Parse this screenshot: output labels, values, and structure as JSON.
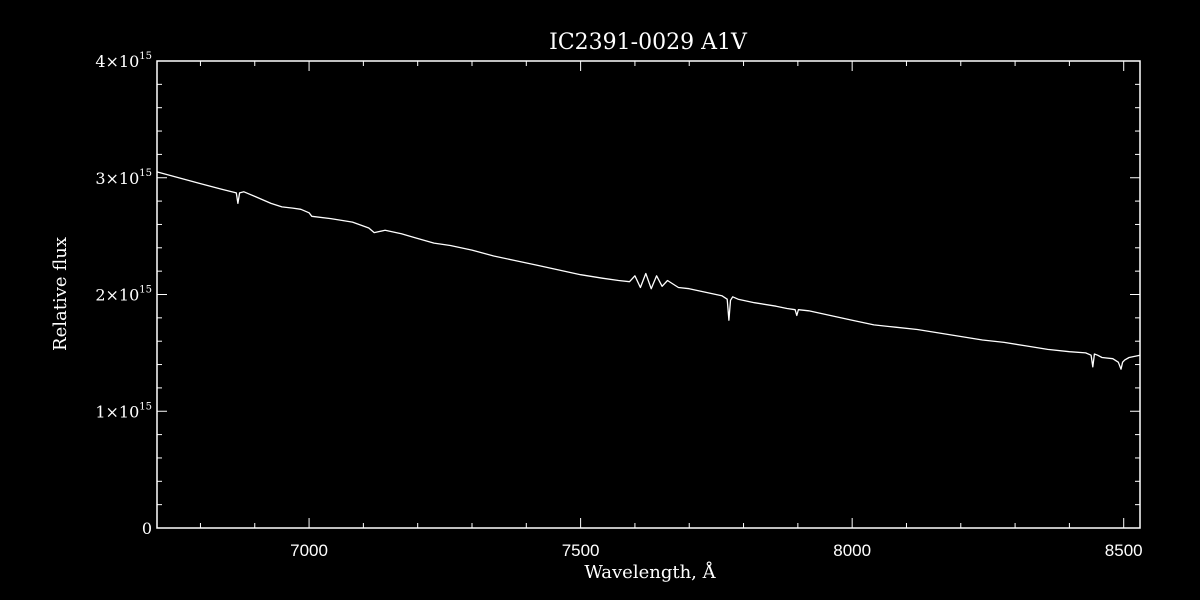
{
  "chart_data": {
    "type": "line",
    "title": "IC2391-0029  A1V",
    "xlabel": "Wavelength, Å",
    "ylabel": "Relative flux",
    "xlim": [
      6720,
      8530
    ],
    "ylim": [
      0,
      4000000000000000.0
    ],
    "xticks": [
      7000,
      7500,
      8000,
      8500
    ],
    "xtick_labels": [
      "7000",
      "7500",
      "8000",
      "8500"
    ],
    "xminor_step": 100,
    "yticks": [
      0,
      1000000000000000.0,
      2000000000000000.0,
      3000000000000000.0,
      4000000000000000.0
    ],
    "ytick_labels": [
      {
        "mantissa": "0",
        "exponent": ""
      },
      {
        "mantissa": "1×10",
        "exponent": "15"
      },
      {
        "mantissa": "2×10",
        "exponent": "15"
      },
      {
        "mantissa": "3×10",
        "exponent": "15"
      },
      {
        "mantissa": "4×10",
        "exponent": "15"
      }
    ],
    "yminor_step": 200000000000000.0,
    "grid": false,
    "series": [
      {
        "color": "#ffffff",
        "x": [
          6720,
          6760,
          6800,
          6840,
          6866,
          6869,
          6872,
          6880,
          6900,
          6930,
          6950,
          6970,
          6985,
          7000,
          7005,
          7040,
          7080,
          7110,
          7120,
          7140,
          7170,
          7185,
          7200,
          7230,
          7260,
          7300,
          7340,
          7380,
          7420,
          7460,
          7500,
          7540,
          7570,
          7590,
          7600,
          7610,
          7620,
          7630,
          7640,
          7650,
          7660,
          7680,
          7700,
          7730,
          7760,
          7770,
          7773,
          7776,
          7780,
          7790,
          7820,
          7860,
          7880,
          7895,
          7898,
          7901,
          7920,
          7960,
          8000,
          8040,
          8080,
          8120,
          8160,
          8200,
          8240,
          8280,
          8320,
          8360,
          8400,
          8430,
          8440,
          8443,
          8446,
          8452,
          8460,
          8480,
          8490,
          8495,
          8498,
          8502,
          8510,
          8530
        ],
        "y": [
          3050000000000000.0,
          3000000000000000.0,
          2950000000000000.0,
          2900000000000000.0,
          2870000000000000.0,
          2780000000000000.0,
          2870000000000000.0,
          2880000000000000.0,
          2840000000000000.0,
          2780000000000000.0,
          2750000000000000.0,
          2740000000000000.0,
          2730000000000000.0,
          2700000000000000.0,
          2670000000000000.0,
          2650000000000000.0,
          2620000000000000.0,
          2570000000000000.0,
          2530000000000000.0,
          2550000000000000.0,
          2520000000000000.0,
          2500000000000000.0,
          2480000000000000.0,
          2440000000000000.0,
          2420000000000000.0,
          2380000000000000.0,
          2330000000000000.0,
          2290000000000000.0,
          2250000000000000.0,
          2210000000000000.0,
          2170000000000000.0,
          2140000000000000.0,
          2120000000000000.0,
          2110000000000000.0,
          2160000000000000.0,
          2060000000000000.0,
          2180000000000000.0,
          2050000000000000.0,
          2160000000000000.0,
          2070000000000000.0,
          2120000000000000.0,
          2060000000000000.0,
          2050000000000000.0,
          2020000000000000.0,
          1990000000000000.0,
          1960000000000000.0,
          1780000000000000.0,
          1950000000000000.0,
          1980000000000000.0,
          1960000000000000.0,
          1930000000000000.0,
          1900000000000000.0,
          1880000000000000.0,
          1870000000000000.0,
          1820000000000000.0,
          1870000000000000.0,
          1860000000000000.0,
          1820000000000000.0,
          1780000000000000.0,
          1740000000000000.0,
          1720000000000000.0,
          1700000000000000.0,
          1670000000000000.0,
          1640000000000000.0,
          1610000000000000.0,
          1590000000000000.0,
          1560000000000000.0,
          1530000000000000.0,
          1510000000000000.0,
          1500000000000000.0,
          1480000000000000.0,
          1380000000000000.0,
          1490000000000000.0,
          1480000000000000.0,
          1460000000000000.0,
          1450000000000000.0,
          1420000000000000.0,
          1360000000000000.0,
          1420000000000000.0,
          1440000000000000.0,
          1460000000000000.0,
          1480000000000000.0
        ]
      }
    ]
  }
}
